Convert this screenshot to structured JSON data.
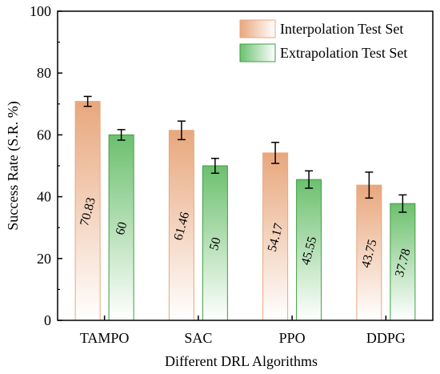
{
  "chart_data": {
    "type": "bar",
    "title": "",
    "xlabel": "Different DRL Algorithms",
    "ylabel": "Success Rate (S.R. %)",
    "ylim": [
      0,
      100
    ],
    "yticks": [
      0,
      20,
      40,
      60,
      80,
      100
    ],
    "categories": [
      "TAMPO",
      "SAC",
      "PPO",
      "DDPG"
    ],
    "series": [
      {
        "name": "Interpolation Test Set",
        "values": [
          70.83,
          61.46,
          54.17,
          43.75
        ],
        "errors": [
          1.6,
          3.0,
          3.4,
          4.2
        ],
        "labels": [
          "70.83",
          "61.46",
          "54.17",
          "43.75"
        ],
        "color": "#e8a77d"
      },
      {
        "name": "Extrapolation Test Set",
        "values": [
          60,
          50,
          45.55,
          37.78
        ],
        "errors": [
          1.7,
          2.4,
          2.8,
          2.8
        ],
        "labels": [
          "60",
          "50",
          "45.55",
          "37.78"
        ],
        "color": "#4caf50"
      }
    ],
    "legend_position": "top-right",
    "grid": false
  }
}
